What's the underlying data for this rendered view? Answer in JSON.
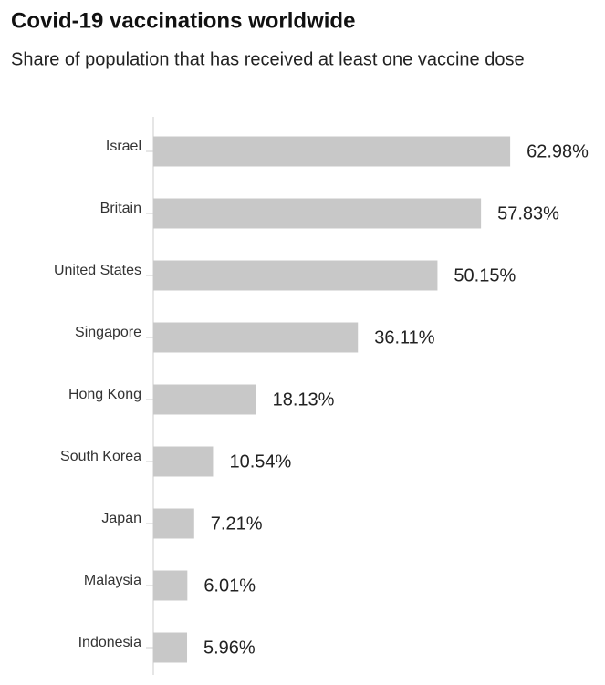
{
  "chart_data": {
    "type": "barh",
    "title": "Covid-19 vaccinations worldwide",
    "subtitle": "Share of population that has received at least one vaccine dose",
    "categories": [
      "Israel",
      "Britain",
      "United States",
      "Singapore",
      "Hong Kong",
      "South Korea",
      "Japan",
      "Malaysia",
      "Indonesia"
    ],
    "values": [
      62.98,
      57.83,
      50.15,
      36.11,
      18.13,
      10.54,
      7.21,
      6.01,
      5.96
    ],
    "value_labels": [
      "62.98%",
      "57.83%",
      "50.15%",
      "36.11%",
      "18.13%",
      "10.54%",
      "7.21%",
      "6.01%",
      "5.96%"
    ],
    "color": "#c8c8c8"
  }
}
